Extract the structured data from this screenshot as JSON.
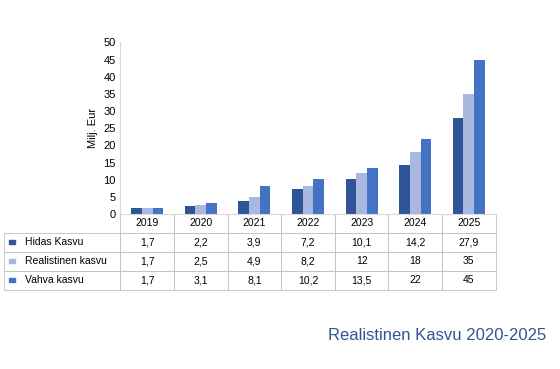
{
  "chart_data": {
    "type": "bar",
    "y_label": "Milj. Eur",
    "categories": [
      "2019",
      "2020",
      "2021",
      "2022",
      "2023",
      "2024",
      "2025"
    ],
    "series": [
      {
        "name": "Hidas Kasvu",
        "color": "#2f5597",
        "values": [
          1.7,
          2.2,
          3.9,
          7.2,
          10.1,
          14.2,
          27.9
        ],
        "value_labels": [
          "1,7",
          "2,2",
          "3,9",
          "7,2",
          "10,1",
          "14,2",
          "27,9"
        ]
      },
      {
        "name": "Realistinen kasvu",
        "color": "#a9b8e0",
        "values": [
          1.7,
          2.5,
          4.9,
          8.2,
          12,
          18,
          35
        ],
        "value_labels": [
          "1,7",
          "2,5",
          "4,9",
          "8,2",
          "12",
          "18",
          "35"
        ]
      },
      {
        "name": "Vahva kasvu",
        "color": "#4472c4",
        "values": [
          1.7,
          3.1,
          8.1,
          10.2,
          13.5,
          22,
          45
        ],
        "value_labels": [
          "1,7",
          "3,1",
          "8,1",
          "10,2",
          "13,5",
          "22",
          "45"
        ]
      }
    ],
    "ylim": [
      0,
      50
    ],
    "yticks": [
      0,
      5,
      10,
      15,
      20,
      25,
      30,
      35,
      40,
      45,
      50
    ],
    "grid": false,
    "annotations": [
      "Realistinen Kasvu 2020-2025"
    ]
  }
}
